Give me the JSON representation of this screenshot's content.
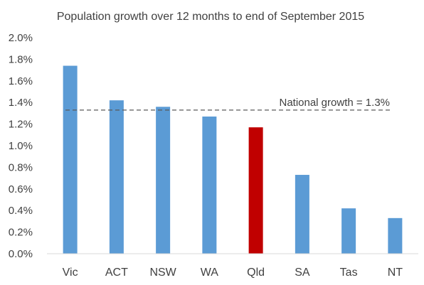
{
  "chart_data": {
    "type": "bar",
    "title": "Population growth over 12 months to end of September 2015",
    "categories": [
      "Vic",
      "ACT",
      "NSW",
      "WA",
      "Qld",
      "SA",
      "Tas",
      "NT"
    ],
    "values": [
      1.74,
      1.42,
      1.36,
      1.27,
      1.17,
      0.73,
      0.42,
      0.33
    ],
    "value_unit": "%",
    "ylim": [
      0,
      2.0
    ],
    "yticks": [
      "0.0%",
      "0.2%",
      "0.4%",
      "0.6%",
      "0.8%",
      "1.0%",
      "1.2%",
      "1.4%",
      "1.6%",
      "1.8%",
      "2.0%"
    ],
    "reference_line": {
      "value": 1.33,
      "label": "National growth = 1.3%",
      "style": "dashed"
    },
    "highlight_category": "Qld",
    "colors": {
      "bar": "#5b9bd5",
      "highlight": "#c00000",
      "reference": "#595959",
      "axis": "#d9d9d9"
    },
    "grid": false,
    "legend": "none"
  }
}
